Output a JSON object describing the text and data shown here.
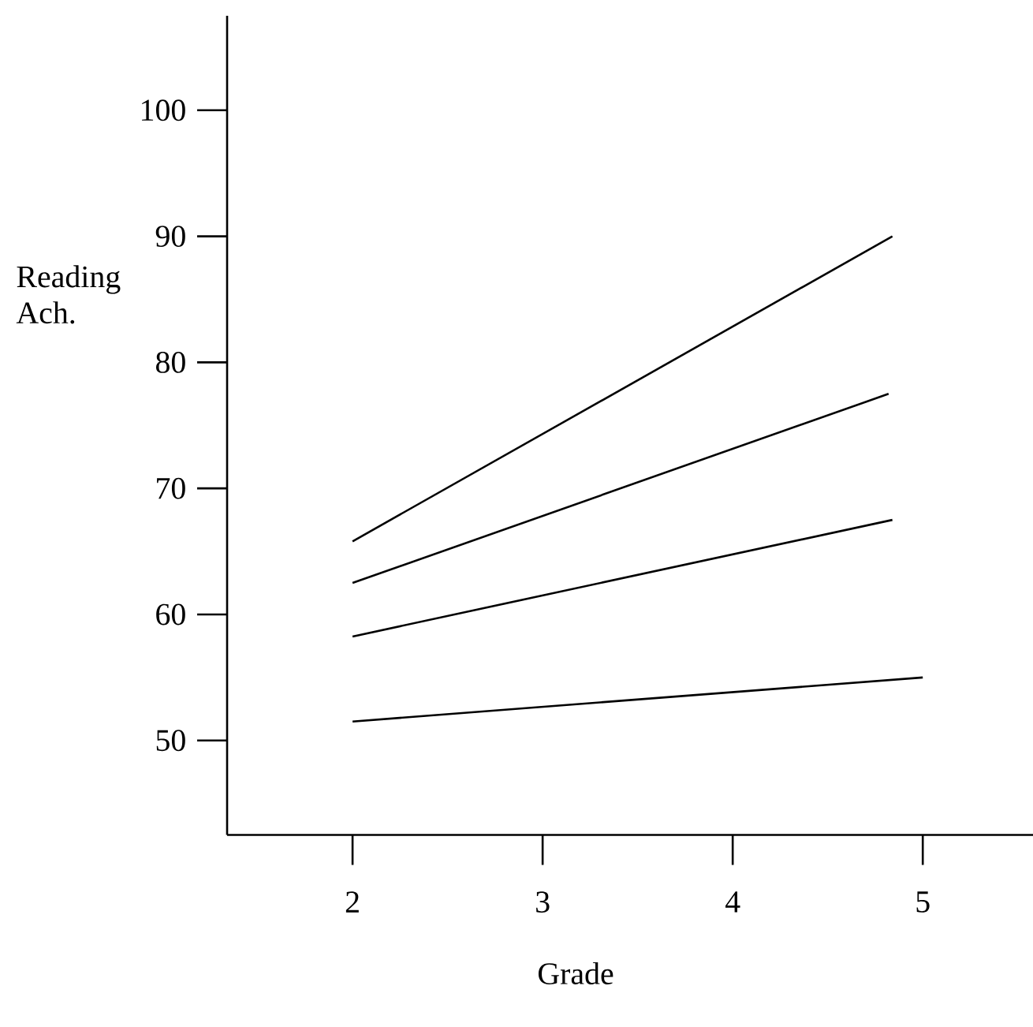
{
  "chart_data": {
    "type": "line",
    "xlabel": "Grade",
    "ylabel": "Reading Ach.",
    "xlim": [
      1.34,
      5.58
    ],
    "ylim": [
      42.5,
      107.5
    ],
    "xticks": [
      2,
      3,
      4,
      5
    ],
    "yticks": [
      50,
      60,
      70,
      80,
      90,
      100
    ],
    "series": [
      {
        "color": "#000000",
        "x": [
          2,
          4.84
        ],
        "values": [
          65.8,
          90
        ]
      },
      {
        "color": "#000000",
        "x": [
          2,
          4.82
        ],
        "values": [
          62.5,
          77.5
        ]
      },
      {
        "color": "#000000",
        "x": [
          2,
          4.84
        ],
        "values": [
          58.25,
          67.5
        ]
      },
      {
        "color": "#000000",
        "x": [
          2,
          5
        ],
        "values": [
          51.5,
          55
        ]
      }
    ],
    "line_style": "solid",
    "marker": "none"
  }
}
